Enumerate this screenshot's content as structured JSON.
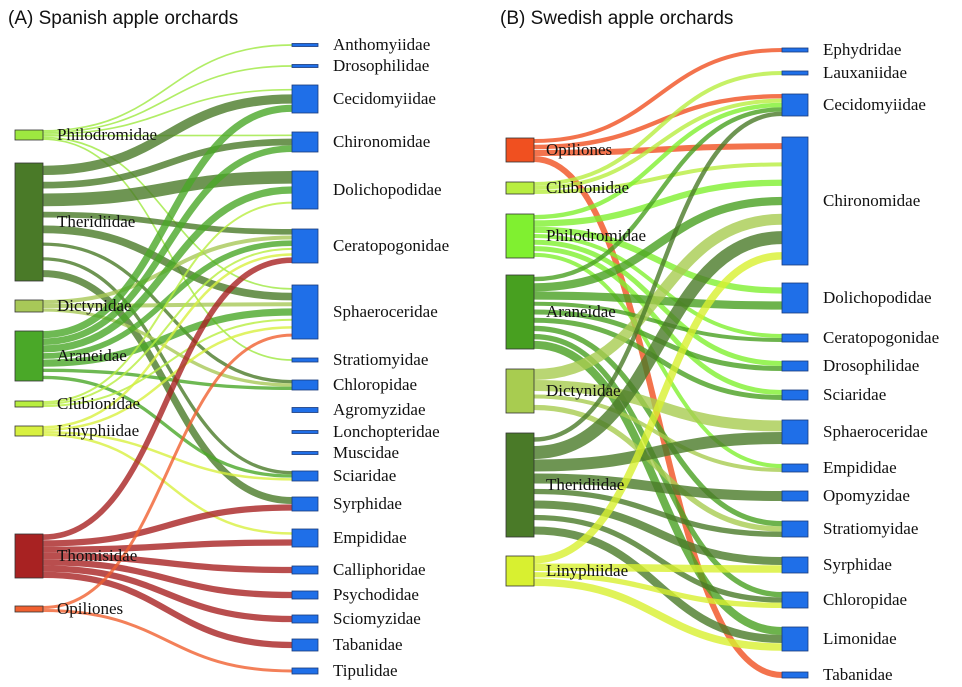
{
  "panels": [
    {
      "title": "(A) Spanish apple orchards",
      "left": [
        {
          "label": "Philodromidae",
          "color": "#9ee840"
        },
        {
          "label": "Theridiidae",
          "color": "#4a7a28"
        },
        {
          "label": "Dictynidae",
          "color": "#a8c858"
        },
        {
          "label": "Araneidae",
          "color": "#4aa828"
        },
        {
          "label": "Clubionidae",
          "color": "#b8ee40"
        },
        {
          "label": "Linyphiidae",
          "color": "#d8f040"
        },
        {
          "label": "Thomisidae",
          "color": "#a82222"
        },
        {
          "label": "Opiliones",
          "color": "#f06030"
        }
      ],
      "right": [
        "Anthomyiidae",
        "Drosophilidae",
        "Cecidomyiidae",
        "Chironomidae",
        "Dolichopodidae",
        "Ceratopogonidae",
        "Sphaeroceridae",
        "Stratiomyidae",
        "Chloropidae",
        "Agromyzidae",
        "Lonchopteridae",
        "Muscidae",
        "Sciaridae",
        "Syrphidae",
        "Empididae",
        "Calliphoridae",
        "Psychodidae",
        "Sciomyzidae",
        "Tabanidae",
        "Tipulidae"
      ],
      "right_color": "#1f6fe8",
      "links": [
        [
          0,
          0
        ],
        [
          0,
          1
        ],
        [
          0,
          2
        ],
        [
          0,
          3
        ],
        [
          0,
          6
        ],
        [
          0,
          7
        ],
        [
          1,
          2
        ],
        [
          1,
          3
        ],
        [
          1,
          4
        ],
        [
          1,
          5
        ],
        [
          1,
          6
        ],
        [
          1,
          8
        ],
        [
          1,
          12
        ],
        [
          1,
          13
        ],
        [
          2,
          5
        ],
        [
          2,
          6
        ],
        [
          2,
          8
        ],
        [
          3,
          2
        ],
        [
          3,
          3
        ],
        [
          3,
          4
        ],
        [
          3,
          5
        ],
        [
          3,
          6
        ],
        [
          3,
          8
        ],
        [
          3,
          12
        ],
        [
          4,
          4
        ],
        [
          4,
          5
        ],
        [
          4,
          6
        ],
        [
          5,
          5
        ],
        [
          5,
          6
        ],
        [
          5,
          12
        ],
        [
          5,
          14
        ],
        [
          6,
          5
        ],
        [
          6,
          13
        ],
        [
          6,
          14
        ],
        [
          6,
          15
        ],
        [
          6,
          16
        ],
        [
          6,
          17
        ],
        [
          6,
          18
        ],
        [
          7,
          6
        ],
        [
          7,
          19
        ]
      ]
    },
    {
      "title": "(B) Swedish apple orchards",
      "left": [
        {
          "label": "Opiliones",
          "color": "#f05020"
        },
        {
          "label": "Clubionidae",
          "color": "#b8ee40"
        },
        {
          "label": "Philodromidae",
          "color": "#80f030"
        },
        {
          "label": "Araneidae",
          "color": "#48a020"
        },
        {
          "label": "Dictynidae",
          "color": "#a8cc50"
        },
        {
          "label": "Theridiidae",
          "color": "#4a7a28"
        },
        {
          "label": "Linyphiidae",
          "color": "#d8f030"
        }
      ],
      "right": [
        "Ephydridae",
        "Lauxaniidae",
        "Cecidomyiidae",
        "Chironomidae",
        "Dolichopodidae",
        "Ceratopogonidae",
        "Drosophilidae",
        "Sciaridae",
        "Sphaeroceridae",
        "Empididae",
        "Opomyzidae",
        "Stratiomyidae",
        "Syrphidae",
        "Chloropidae",
        "Limonidae",
        "Tabanidae"
      ],
      "right_color": "#1f6fe8",
      "links": [
        [
          0,
          0
        ],
        [
          0,
          2
        ],
        [
          0,
          3
        ],
        [
          0,
          15
        ],
        [
          1,
          1
        ],
        [
          1,
          2
        ],
        [
          1,
          3
        ],
        [
          2,
          2
        ],
        [
          2,
          3
        ],
        [
          2,
          4
        ],
        [
          2,
          5
        ],
        [
          2,
          6
        ],
        [
          2,
          7
        ],
        [
          2,
          9
        ],
        [
          3,
          2
        ],
        [
          3,
          3
        ],
        [
          3,
          4
        ],
        [
          3,
          5
        ],
        [
          3,
          6
        ],
        [
          3,
          7
        ],
        [
          3,
          11
        ],
        [
          3,
          13
        ],
        [
          3,
          14
        ],
        [
          4,
          3
        ],
        [
          4,
          8
        ],
        [
          4,
          9
        ],
        [
          4,
          11
        ],
        [
          5,
          2
        ],
        [
          5,
          3
        ],
        [
          5,
          8
        ],
        [
          5,
          10
        ],
        [
          5,
          11
        ],
        [
          5,
          12
        ],
        [
          5,
          13
        ],
        [
          5,
          14
        ],
        [
          6,
          3
        ],
        [
          6,
          12
        ],
        [
          6,
          13
        ],
        [
          6,
          14
        ]
      ]
    }
  ]
}
